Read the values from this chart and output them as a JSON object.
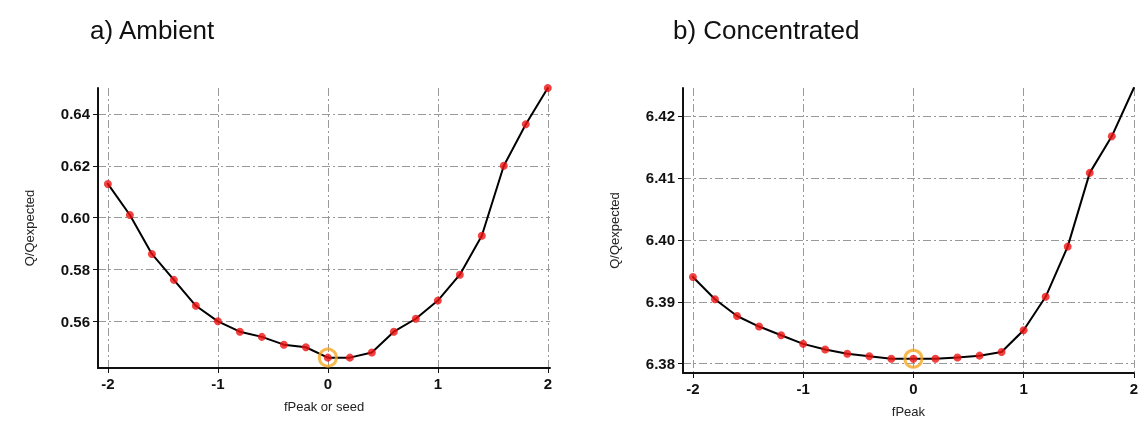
{
  "chart_data": [
    {
      "type": "line",
      "title": "a) Ambient",
      "xlabel": "fPeak or seed",
      "ylabel": "Q/Qexpected",
      "xlim": [
        -2.09,
        2.02
      ],
      "xticks": [
        -2,
        -1,
        0,
        1,
        2
      ],
      "ylim": [
        0.542,
        0.65
      ],
      "yticks": [
        {
          "value": 0.56,
          "label": "0.56"
        },
        {
          "value": 0.58,
          "label": "0.58"
        },
        {
          "value": 0.6,
          "label": "0.60"
        },
        0.62,
        0.64
      ],
      "grid": true,
      "series": [
        {
          "color": "#000000",
          "marker": "none",
          "line_style": "solid",
          "x": [
            -2,
            -1.8,
            -1.6,
            -1.4,
            -1.2,
            -1,
            -0.8,
            -0.6,
            -0.4,
            -0.2,
            0,
            0.2,
            0.4,
            0.6,
            0.8,
            1,
            1.2,
            1.4,
            1.6,
            1.8,
            2
          ],
          "values": [
            0.613,
            0.601,
            0.586,
            0.576,
            0.566,
            0.56,
            0.556,
            0.554,
            0.551,
            0.55,
            0.546,
            0.546,
            0.548,
            0.556,
            0.561,
            0.568,
            0.578,
            0.593,
            0.62,
            0.636,
            0.65
          ]
        },
        {
          "type": "scatter",
          "color": "#ee1111",
          "marker": "circle",
          "x": [
            -2,
            -1.8,
            -1.6,
            -1.4,
            -1.2,
            -1,
            -0.8,
            -0.6,
            -0.4,
            -0.2,
            0,
            0.2,
            0.4,
            0.6,
            0.8,
            1,
            1.2,
            1.4,
            1.6,
            1.8,
            2
          ],
          "values": [
            0.613,
            0.601,
            0.586,
            0.576,
            0.566,
            0.56,
            0.556,
            0.554,
            0.551,
            0.55,
            0.546,
            0.546,
            0.548,
            0.556,
            0.561,
            0.568,
            0.578,
            0.593,
            0.62,
            0.636,
            0.65
          ]
        },
        {
          "type": "scatter",
          "color": "#f5a623",
          "marker": "circle",
          "x": [
            0
          ],
          "values": [
            0.546
          ]
        }
      ]
    },
    {
      "type": "line",
      "title": "b) Concentrated",
      "xlabel": "fPeak",
      "ylabel": "Q/Qexpected",
      "xlim": [
        -2.09,
        2.0
      ],
      "xticks": [
        -2,
        -1,
        0,
        1,
        2
      ],
      "ylim": [
        6.3785,
        6.4245
      ],
      "yticks": [
        {
          "value": 6.38,
          "label": "6.38"
        },
        6.39,
        {
          "value": 6.4,
          "label": "6.40"
        },
        6.41,
        6.42
      ],
      "grid": true,
      "series": [
        {
          "color": "#000000",
          "marker": "none",
          "line_style": "solid",
          "x": [
            -2,
            -1.8,
            -1.6,
            -1.4,
            -1.2,
            -1,
            -0.8,
            -0.6,
            -0.4,
            -0.2,
            0,
            0.2,
            0.4,
            0.6,
            0.8,
            1,
            1.2,
            1.4,
            1.6,
            1.8,
            2
          ],
          "values": [
            6.394,
            6.3904,
            6.3877,
            6.386,
            6.3846,
            6.3832,
            6.3823,
            6.3816,
            6.3812,
            6.3808,
            6.3808,
            6.3808,
            6.381,
            6.3813,
            6.3819,
            6.3854,
            6.3908,
            6.3989,
            6.4108,
            6.4167,
            6.4245
          ]
        },
        {
          "type": "scatter",
          "color": "#ee1111",
          "marker": "circle",
          "x": [
            -2,
            -1.8,
            -1.6,
            -1.4,
            -1.2,
            -1,
            -0.8,
            -0.6,
            -0.4,
            -0.2,
            0,
            0.2,
            0.4,
            0.6,
            0.8,
            1,
            1.2,
            1.4,
            1.6,
            1.8
          ],
          "values": [
            6.394,
            6.3904,
            6.3877,
            6.386,
            6.3846,
            6.3832,
            6.3823,
            6.3816,
            6.3812,
            6.3808,
            6.3808,
            6.3808,
            6.381,
            6.3813,
            6.3819,
            6.3854,
            6.3908,
            6.3989,
            6.4108,
            6.4167
          ]
        },
        {
          "type": "scatter",
          "color": "#f5a623",
          "marker": "circle",
          "x": [
            0
          ],
          "values": [
            6.3808
          ]
        }
      ]
    }
  ]
}
